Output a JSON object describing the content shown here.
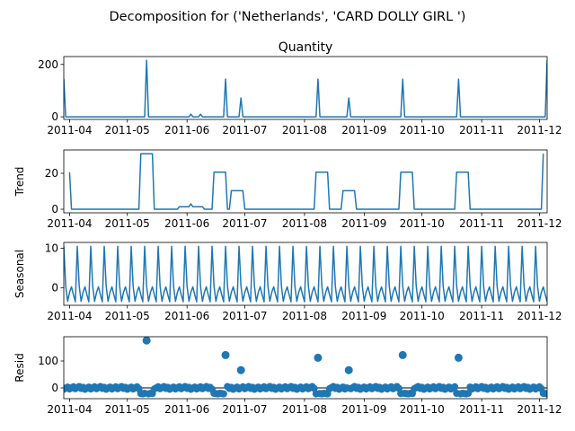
{
  "figure": {
    "suptitle": "Decomposition for ('Netherlands', 'CARD DOLLY GIRL ')",
    "line_color": "#1f77b4"
  },
  "chart_data": [
    {
      "type": "line",
      "title": "Quantity",
      "ylabel": "",
      "xlim": [
        "2011-03-29",
        "2011-12-05"
      ],
      "ylim": [
        -10,
        230
      ],
      "yticks": [
        0,
        200
      ],
      "xtick_labels": [
        "2011-04",
        "2011-05",
        "2011-06",
        "2011-07",
        "2011-08",
        "2011-09",
        "2011-10",
        "2011-11",
        "2011-12"
      ],
      "grid": false,
      "series": [
        {
          "name": "",
          "x": [
            "2011-03-29",
            "2011-03-30",
            "2011-05-10",
            "2011-05-11",
            "2011-05-12",
            "2011-06-02",
            "2011-06-03",
            "2011-06-04",
            "2011-06-07",
            "2011-06-08",
            "2011-06-09",
            "2011-06-20",
            "2011-06-21",
            "2011-06-22",
            "2011-06-28",
            "2011-06-29",
            "2011-06-30",
            "2011-08-07",
            "2011-08-08",
            "2011-08-09",
            "2011-08-23",
            "2011-08-24",
            "2011-08-25",
            "2011-09-20",
            "2011-09-21",
            "2011-09-22",
            "2011-10-19",
            "2011-10-20",
            "2011-10-21",
            "2011-12-04",
            "2011-12-05"
          ],
          "y": [
            145,
            0,
            0,
            216,
            0,
            0,
            10,
            0,
            0,
            10,
            0,
            0,
            144,
            0,
            0,
            72,
            0,
            0,
            144,
            0,
            0,
            72,
            0,
            0,
            144,
            0,
            0,
            144,
            0,
            0,
            216
          ]
        }
      ]
    },
    {
      "type": "line",
      "title": "",
      "ylabel": "Trend",
      "xlim": [
        "2011-03-29",
        "2011-12-05"
      ],
      "ylim": [
        -2,
        33
      ],
      "yticks": [
        0,
        20
      ],
      "xtick_labels": [
        "2011-04",
        "2011-05",
        "2011-06",
        "2011-07",
        "2011-08",
        "2011-09",
        "2011-10",
        "2011-11",
        "2011-12"
      ],
      "grid": false,
      "series": [
        {
          "name": "",
          "x": [
            "2011-04-01",
            "2011-04-02",
            "2011-05-07",
            "2011-05-08",
            "2011-05-14",
            "2011-05-15",
            "2011-05-27",
            "2011-05-28",
            "2011-06-02",
            "2011-06-03",
            "2011-06-04",
            "2011-06-05",
            "2011-06-09",
            "2011-06-10",
            "2011-06-14",
            "2011-06-15",
            "2011-06-21",
            "2011-06-22",
            "2011-06-23",
            "2011-06-24",
            "2011-06-30",
            "2011-07-01",
            "2011-08-06",
            "2011-08-07",
            "2011-08-13",
            "2011-08-14",
            "2011-08-20",
            "2011-08-21",
            "2011-08-27",
            "2011-08-28",
            "2011-09-19",
            "2011-09-20",
            "2011-09-26",
            "2011-09-27",
            "2011-10-18",
            "2011-10-19",
            "2011-10-25",
            "2011-10-26",
            "2011-12-02",
            "2011-12-03"
          ],
          "y": [
            20.6,
            0,
            0,
            30.9,
            30.9,
            0,
            0,
            1.4,
            1.4,
            3,
            1.4,
            1.4,
            1.4,
            0,
            0,
            20.6,
            20.6,
            0,
            0,
            10.3,
            10.3,
            0,
            0,
            20.6,
            20.6,
            0,
            0,
            10.3,
            10.3,
            0,
            0,
            20.6,
            20.6,
            0,
            0,
            20.6,
            20.6,
            0,
            0,
            30.9
          ]
        }
      ]
    },
    {
      "type": "line",
      "title": "",
      "ylabel": "Seasonal",
      "xlim": [
        "2011-03-29",
        "2011-12-05"
      ],
      "ylim": [
        -4.5,
        11.5
      ],
      "yticks": [
        0,
        10
      ],
      "xtick_labels": [
        "2011-04",
        "2011-05",
        "2011-06",
        "2011-07",
        "2011-08",
        "2011-09",
        "2011-10",
        "2011-11",
        "2011-12"
      ],
      "grid": false,
      "period_days": 7,
      "start": "2011-03-29",
      "end": "2011-12-05",
      "pattern": [
        10.5,
        0.4,
        -3.5,
        -1.2,
        0.2,
        -1.8,
        -3.6
      ],
      "series": [
        {
          "name": ""
        }
      ]
    },
    {
      "type": "scatter",
      "title": "",
      "ylabel": "Resid",
      "xlim": [
        "2011-03-29",
        "2011-12-05"
      ],
      "ylim": [
        -40,
        190
      ],
      "yticks": [
        0,
        100
      ],
      "xtick_labels": [
        "2011-04",
        "2011-05",
        "2011-06",
        "2011-07",
        "2011-08",
        "2011-09",
        "2011-10",
        "2011-11",
        "2011-12"
      ],
      "grid": false,
      "baseline": 0,
      "outliers": [
        {
          "x": "2011-05-11",
          "y": 176
        },
        {
          "x": "2011-06-21",
          "y": 122
        },
        {
          "x": "2011-06-29",
          "y": 66
        },
        {
          "x": "2011-08-08",
          "y": 112
        },
        {
          "x": "2011-08-24",
          "y": 66
        },
        {
          "x": "2011-09-21",
          "y": 122
        },
        {
          "x": "2011-10-20",
          "y": 112
        }
      ],
      "low_ranges": [
        [
          "2011-05-08",
          "2011-05-14"
        ],
        [
          "2011-06-15",
          "2011-06-20"
        ],
        [
          "2011-08-07",
          "2011-08-13"
        ],
        [
          "2011-09-20",
          "2011-09-26"
        ],
        [
          "2011-10-19",
          "2011-10-25"
        ],
        [
          "2011-12-03",
          "2011-12-05"
        ]
      ],
      "series": [
        {
          "name": ""
        }
      ]
    }
  ]
}
